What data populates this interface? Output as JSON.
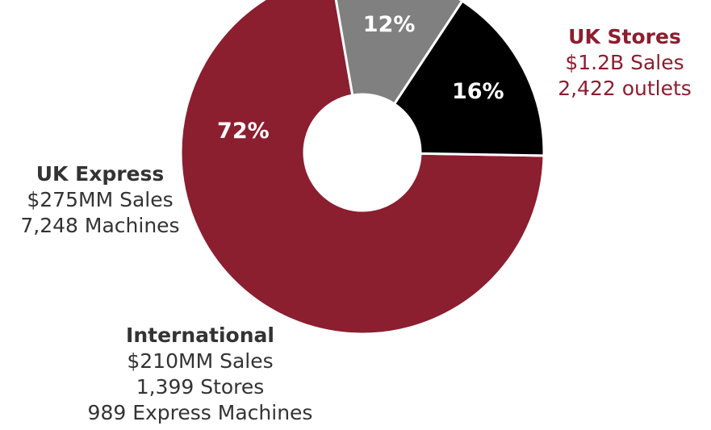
{
  "chart_data": {
    "type": "pie",
    "donut": true,
    "slices": [
      {
        "name": "UK Stores",
        "percent": 72,
        "label": "72%",
        "color": "#8b1e2f",
        "details": [
          "$1.2B Sales",
          "2,422 outlets"
        ]
      },
      {
        "name": "International",
        "percent": 12,
        "label": "12%",
        "color": "#808080",
        "details": [
          "$210MM Sales",
          "1,399 Stores",
          "989 Express Machines"
        ]
      },
      {
        "name": "UK Express",
        "percent": 16,
        "label": "16%",
        "color": "#000000",
        "details": [
          "$275MM Sales",
          "7,248 Machines"
        ]
      }
    ]
  }
}
